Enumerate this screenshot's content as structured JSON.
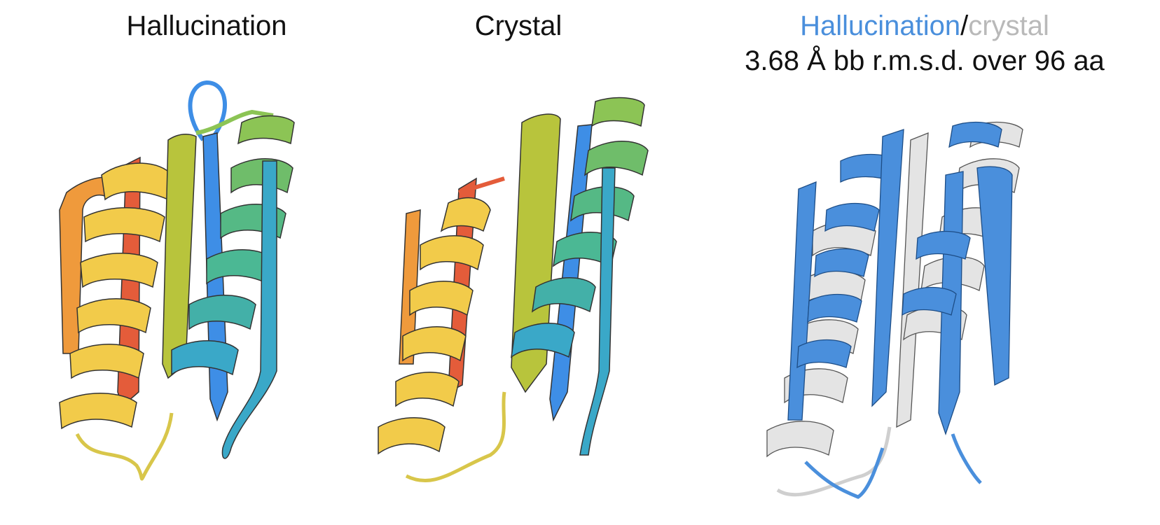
{
  "panels": {
    "hallucination": {
      "title": "Hallucination"
    },
    "crystal": {
      "title": "Crystal"
    },
    "overlay": {
      "title_a": "Hallucination",
      "separator": "/",
      "title_b": "crystal",
      "subtitle": "3.68 Å bb r.m.s.d. over 96 aa"
    }
  },
  "colors": {
    "hallucination_blue": "#4a8fdc",
    "crystal_gray": "#b9b9b9",
    "rainbow": [
      "#3e8ee6",
      "#3aa8c8",
      "#4bb894",
      "#8cc455",
      "#b8c43c",
      "#f2cb4a",
      "#ef9a3c",
      "#e45c3a"
    ]
  }
}
